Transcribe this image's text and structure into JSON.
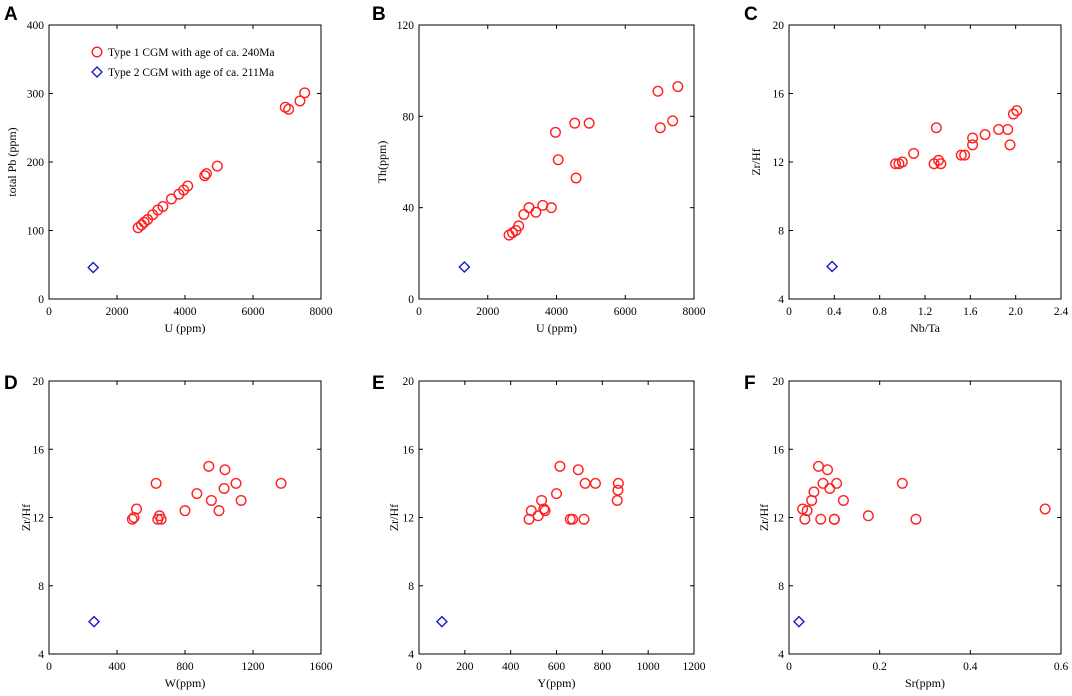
{
  "colors": {
    "type1": "#ff2020",
    "type2": "#1a1acc",
    "axis": "#000000"
  },
  "legend": {
    "type1_label": "Type 1 CGM with age of ca. 240Ma",
    "type2_label": "Type 2 CGM with age of ca. 211Ma"
  },
  "chart_data": [
    {
      "panel": "A",
      "type": "scatter",
      "xlabel": "U (ppm)",
      "ylabel": "total Pb (ppm)",
      "xlim": [
        0,
        8000
      ],
      "ylim": [
        0,
        400
      ],
      "xticks": [
        0,
        2000,
        4000,
        6000,
        8000
      ],
      "yticks": [
        0,
        100,
        200,
        300,
        400
      ],
      "xtick_labels": [
        "0",
        "2000",
        "4000",
        "6000",
        "8000"
      ],
      "ytick_labels": [
        "0",
        "100",
        "200",
        "300",
        "400"
      ],
      "series": [
        {
          "name": "Type 1 CGM with age of ca. 240Ma",
          "marker": "circle",
          "x": [
            2620,
            2720,
            2800,
            2900,
            3050,
            3200,
            3350,
            3600,
            3820,
            3960,
            4080,
            4580,
            4630,
            4950,
            6950,
            7050,
            7380,
            7520
          ],
          "y": [
            104,
            108,
            112,
            116,
            123,
            130,
            135,
            146,
            153,
            159,
            165,
            180,
            183,
            194,
            280,
            277,
            289,
            301
          ]
        },
        {
          "name": "Type 2 CGM with age of ca. 211Ma",
          "marker": "diamond",
          "x": [
            1300
          ],
          "y": [
            46
          ]
        }
      ]
    },
    {
      "panel": "B",
      "type": "scatter",
      "xlabel": "U (ppm)",
      "ylabel": "Th(ppm)",
      "xlim": [
        0,
        8000
      ],
      "ylim": [
        0,
        120
      ],
      "xticks": [
        0,
        2000,
        4000,
        6000,
        8000
      ],
      "yticks": [
        0,
        40,
        80,
        120
      ],
      "xtick_labels": [
        "0",
        "2000",
        "4000",
        "6000",
        "8000"
      ],
      "ytick_labels": [
        "0",
        "40",
        "80",
        "120"
      ],
      "series": [
        {
          "name": "Type 1 CGM with age of ca. 240Ma",
          "marker": "circle",
          "x": [
            2620,
            2720,
            2820,
            2900,
            3050,
            3200,
            3400,
            3600,
            3850,
            3970,
            4050,
            4530,
            4570,
            4950,
            6950,
            7020,
            7380,
            7530
          ],
          "y": [
            28,
            29,
            30,
            32,
            37,
            40,
            38,
            41,
            40,
            73,
            61,
            77,
            53,
            77,
            91,
            75,
            78,
            93
          ]
        },
        {
          "name": "Type 2 CGM with age of ca. 211Ma",
          "marker": "diamond",
          "x": [
            1320
          ],
          "y": [
            14
          ]
        }
      ]
    },
    {
      "panel": "C",
      "type": "scatter",
      "xlabel": "Nb/Ta",
      "ylabel": "Zr/Hf",
      "xlim": [
        0,
        2.4
      ],
      "ylim": [
        4,
        20
      ],
      "xticks": [
        0,
        0.4,
        0.8,
        1.2,
        1.6,
        2.0,
        2.4
      ],
      "yticks": [
        4,
        8,
        12,
        16,
        20
      ],
      "xtick_labels": [
        "0",
        "0.4",
        "0.8",
        "1.2",
        "1.6",
        "2.0",
        "2.4"
      ],
      "ytick_labels": [
        "4",
        "8",
        "12",
        "16",
        "20"
      ],
      "series": [
        {
          "name": "Type 1 CGM with age of ca. 240Ma",
          "marker": "circle",
          "x": [
            0.94,
            0.97,
            1.0,
            1.1,
            1.28,
            1.3,
            1.32,
            1.34,
            1.52,
            1.55,
            1.62,
            1.62,
            1.73,
            1.85,
            1.93,
            1.95,
            1.98,
            2.01
          ],
          "y": [
            11.9,
            11.9,
            12.0,
            12.5,
            11.9,
            14.0,
            12.1,
            11.9,
            12.4,
            12.4,
            13.4,
            13.0,
            13.6,
            13.9,
            13.9,
            13.0,
            14.8,
            15.0
          ]
        },
        {
          "name": "Type 2 CGM with age of ca. 211Ma",
          "marker": "diamond",
          "x": [
            0.38
          ],
          "y": [
            5.9
          ]
        }
      ]
    },
    {
      "panel": "D",
      "type": "scatter",
      "xlabel": "W(ppm)",
      "ylabel": "Zr/Hf",
      "xlim": [
        0,
        1600
      ],
      "ylim": [
        4,
        20
      ],
      "xticks": [
        0,
        400,
        800,
        1200,
        1600
      ],
      "yticks": [
        4,
        8,
        12,
        16,
        20
      ],
      "xtick_labels": [
        "0",
        "400",
        "800",
        "1200",
        "1600"
      ],
      "ytick_labels": [
        "4",
        "8",
        "12",
        "16",
        "20"
      ],
      "series": [
        {
          "name": "Type 1 CGM with age of ca. 240Ma",
          "marker": "circle",
          "x": [
            490,
            500,
            515,
            630,
            640,
            650,
            660,
            800,
            870,
            940,
            955,
            1000,
            1030,
            1035,
            1100,
            1130,
            1365
          ],
          "y": [
            11.9,
            12.0,
            12.5,
            14.0,
            11.9,
            12.1,
            11.9,
            12.4,
            13.4,
            15.0,
            13.0,
            12.4,
            13.7,
            14.8,
            14.0,
            13.0,
            14.0
          ]
        },
        {
          "name": "Type 2 CGM with age of ca. 211Ma",
          "marker": "diamond",
          "x": [
            265
          ],
          "y": [
            5.9
          ]
        }
      ]
    },
    {
      "panel": "E",
      "type": "scatter",
      "xlabel": "Y(ppm)",
      "ylabel": "Zr/Hf",
      "xlim": [
        0,
        1200
      ],
      "ylim": [
        4,
        20
      ],
      "xticks": [
        0,
        200,
        400,
        600,
        800,
        1000,
        1200
      ],
      "yticks": [
        4,
        8,
        12,
        16,
        20
      ],
      "xtick_labels": [
        "0",
        "200",
        "400",
        "600",
        "800",
        "1000",
        "1200"
      ],
      "ytick_labels": [
        "4",
        "8",
        "12",
        "16",
        "20"
      ],
      "series": [
        {
          "name": "Type 1 CGM with age of ca. 240Ma",
          "marker": "circle",
          "x": [
            480,
            490,
            520,
            535,
            545,
            550,
            600,
            615,
            660,
            670,
            695,
            720,
            725,
            770,
            865,
            868,
            870
          ],
          "y": [
            11.9,
            12.4,
            12.1,
            13.0,
            12.5,
            12.4,
            13.4,
            15.0,
            11.9,
            11.9,
            14.8,
            11.9,
            14.0,
            14.0,
            13.0,
            13.6,
            14.0
          ]
        },
        {
          "name": "Type 2 CGM with age of ca. 211Ma",
          "marker": "diamond",
          "x": [
            100
          ],
          "y": [
            5.9
          ]
        }
      ]
    },
    {
      "panel": "F",
      "type": "scatter",
      "xlabel": "Sr(ppm)",
      "ylabel": "Zr/Hf",
      "xlim": [
        0,
        0.6
      ],
      "ylim": [
        4,
        20
      ],
      "xticks": [
        0,
        0.2,
        0.4,
        0.6
      ],
      "yticks": [
        4,
        8,
        12,
        16,
        20
      ],
      "xtick_labels": [
        "0",
        "0.2",
        "0.4",
        "0.6"
      ],
      "ytick_labels": [
        "4",
        "8",
        "12",
        "16",
        "20"
      ],
      "series": [
        {
          "name": "Type 1 CGM with age of ca. 240Ma",
          "marker": "circle",
          "x": [
            0.03,
            0.035,
            0.04,
            0.05,
            0.055,
            0.065,
            0.07,
            0.075,
            0.085,
            0.09,
            0.1,
            0.1,
            0.105,
            0.12,
            0.175,
            0.25,
            0.28,
            0.565
          ],
          "y": [
            12.5,
            11.9,
            12.4,
            13.0,
            13.5,
            15.0,
            11.9,
            14.0,
            14.8,
            13.7,
            11.9,
            11.9,
            14.0,
            13.0,
            12.1,
            14.0,
            11.9,
            12.5
          ]
        },
        {
          "name": "Type 2 CGM with age of ca. 211Ma",
          "marker": "diamond",
          "x": [
            0.022
          ],
          "y": [
            5.9
          ]
        }
      ]
    }
  ]
}
